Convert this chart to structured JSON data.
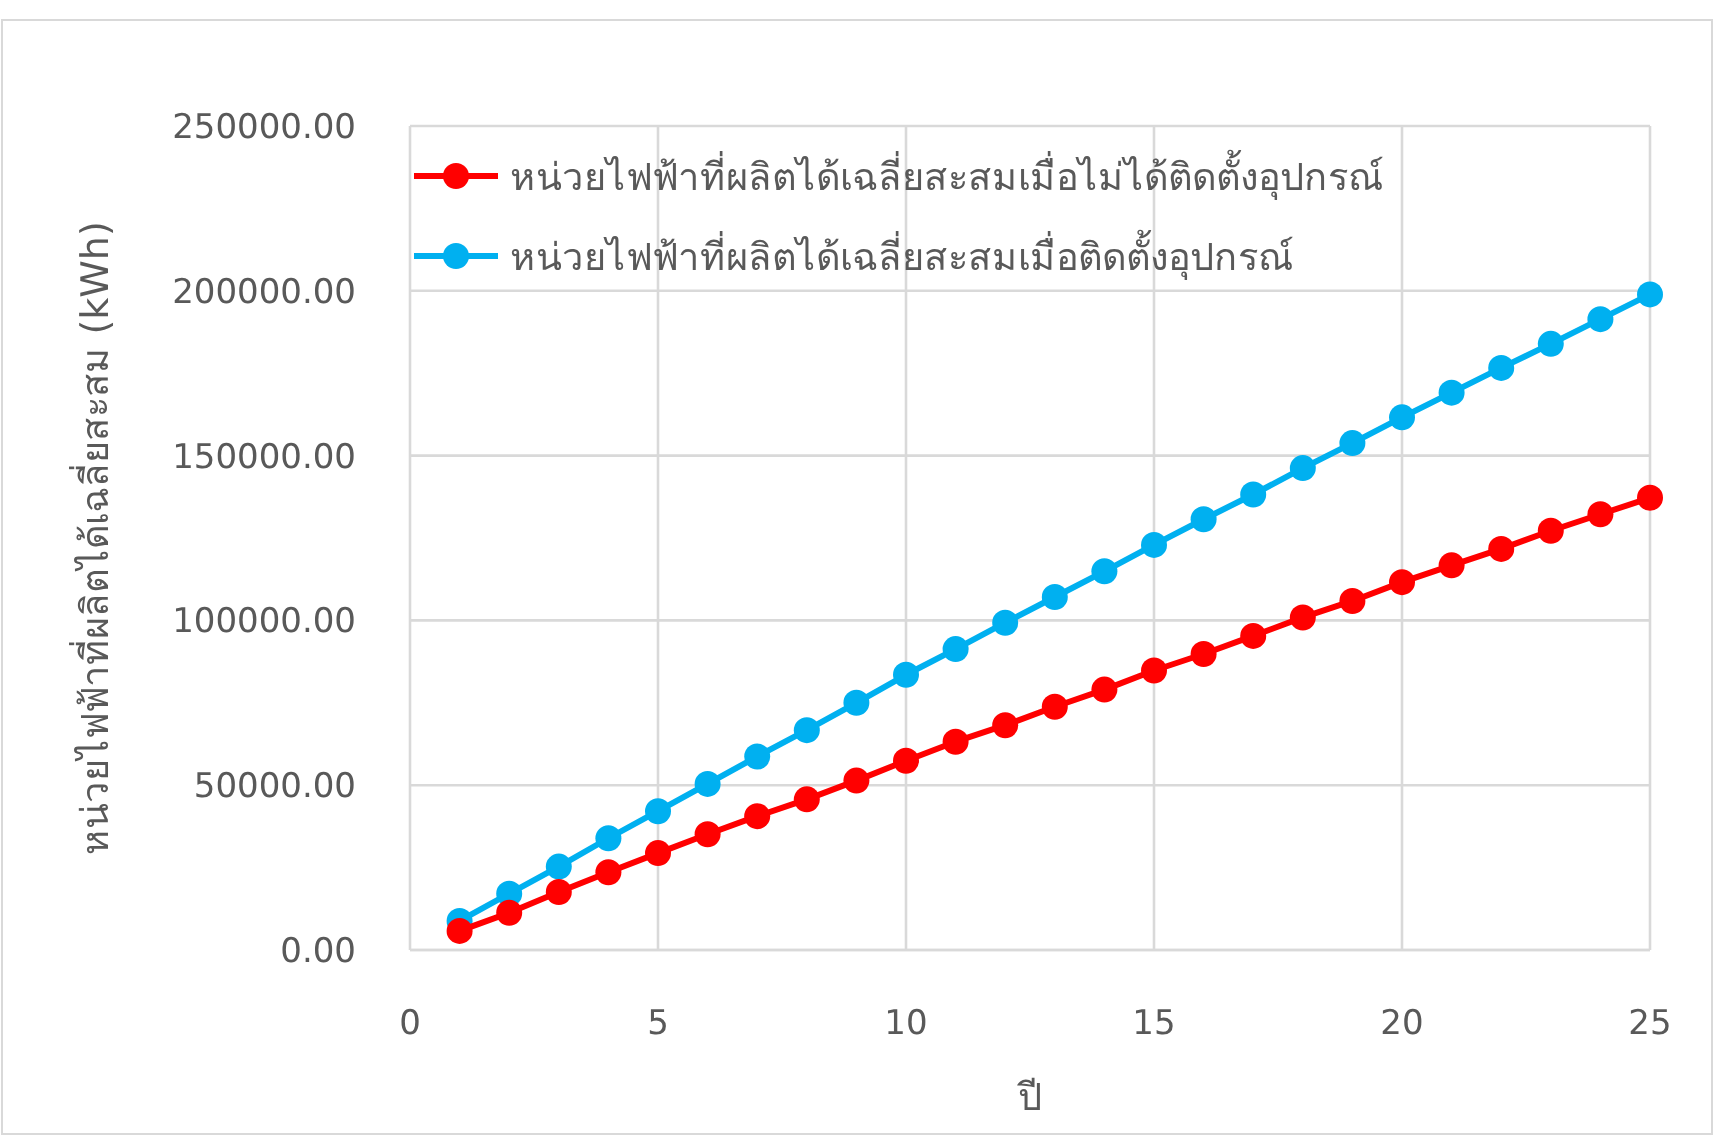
{
  "chart_data": {
    "type": "line",
    "xlabel": "ปี",
    "ylabel": "หน่วยไฟฟ้าที่ผลิตได้เฉลี่ยสะสม (kWh)",
    "x": [
      1,
      2,
      3,
      4,
      5,
      6,
      7,
      8,
      9,
      10,
      11,
      12,
      13,
      14,
      15,
      16,
      17,
      18,
      19,
      20,
      21,
      22,
      23,
      24,
      25
    ],
    "series": [
      {
        "name": "หน่วยไฟฟ้าที่ผลิตได้เฉลี่ยสะสมเมื่อไม่ได้ติดตั้งอุปกรณ์",
        "color": "#ff0000",
        "values": [
          5800,
          11300,
          17600,
          23600,
          29400,
          35100,
          40600,
          45700,
          51400,
          57400,
          63200,
          68200,
          73800,
          79000,
          84800,
          89800,
          95300,
          100900,
          105900,
          111600,
          116700,
          121700,
          127200,
          132200,
          137200
        ]
      },
      {
        "name": "หน่วยไฟฟ้าที่ผลิตได้เฉลี่ยสะสมเมื่อติดตั้งอุปกรณ์",
        "color": "#00b0f0",
        "values": [
          8800,
          17100,
          25300,
          33900,
          42100,
          50400,
          58700,
          66700,
          75000,
          83500,
          91300,
          99300,
          107100,
          114900,
          122900,
          130700,
          138200,
          146200,
          153800,
          161600,
          169100,
          176600,
          183900,
          191400,
          198900
        ]
      }
    ],
    "xlim": [
      0,
      25
    ],
    "xticks": [
      0,
      5,
      10,
      15,
      20,
      25
    ],
    "ylim": [
      0,
      250000
    ],
    "yticks": [
      {
        "value": 0,
        "label": "0.00"
      },
      {
        "value": 50000,
        "label": "50000.00"
      },
      {
        "value": 100000,
        "label": "100000.00"
      },
      {
        "value": 150000,
        "label": "150000.00"
      },
      {
        "value": 200000,
        "label": "200000.00"
      },
      {
        "value": 250000,
        "label": "250000.00"
      }
    ],
    "grid": true,
    "legend": "top left",
    "marker": "circle",
    "line_style": "solid"
  }
}
